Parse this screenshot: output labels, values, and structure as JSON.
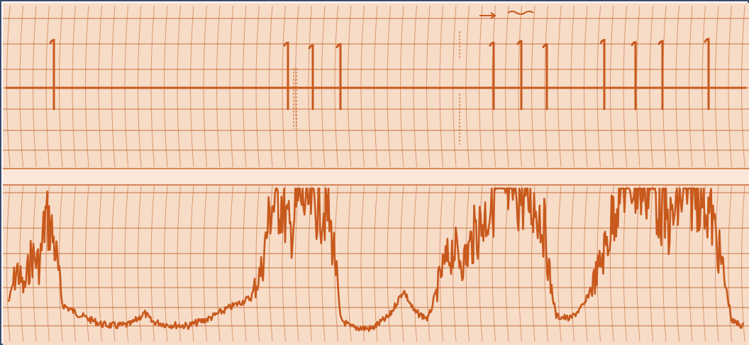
{
  "image": {
    "description": "",
    "paper_color": "#f7dcc8",
    "ink_color": "#c8591c",
    "grid_color": "#c76a32",
    "separator_color": "#fbe8da",
    "border_color": "#3b4a6b"
  },
  "chart_data": {
    "type": "line",
    "title": "",
    "xlabel": "",
    "ylabel": "",
    "grid": true,
    "top_trace": {
      "name": "",
      "markers_x": [
        72,
        402,
        437,
        476,
        692,
        731,
        767,
        848,
        892,
        930,
        995
      ],
      "markers_height": [
        0.9,
        0.85,
        0.8,
        0.82,
        0.85,
        0.88,
        0.82,
        0.9,
        0.86,
        0.88,
        0.92
      ]
    },
    "bottom_trace": {
      "name": "",
      "envelope": [
        [
          8,
          0.22
        ],
        [
          20,
          0.45
        ],
        [
          30,
          0.3
        ],
        [
          40,
          0.55
        ],
        [
          52,
          0.48
        ],
        [
          60,
          0.82
        ],
        [
          68,
          0.75
        ],
        [
          76,
          0.52
        ],
        [
          84,
          0.2
        ],
        [
          100,
          0.15
        ],
        [
          120,
          0.1
        ],
        [
          140,
          0.06
        ],
        [
          160,
          0.05
        ],
        [
          180,
          0.06
        ],
        [
          200,
          0.14
        ],
        [
          210,
          0.08
        ],
        [
          230,
          0.06
        ],
        [
          260,
          0.05
        ],
        [
          290,
          0.1
        ],
        [
          320,
          0.18
        ],
        [
          350,
          0.25
        ],
        [
          365,
          0.45
        ],
        [
          378,
          0.9
        ],
        [
          392,
          0.95
        ],
        [
          405,
          0.7
        ],
        [
          418,
          0.96
        ],
        [
          430,
          0.9
        ],
        [
          445,
          0.92
        ],
        [
          458,
          0.85
        ],
        [
          468,
          0.55
        ],
        [
          476,
          0.1
        ],
        [
          490,
          0.04
        ],
        [
          520,
          0.03
        ],
        [
          545,
          0.12
        ],
        [
          565,
          0.3
        ],
        [
          580,
          0.15
        ],
        [
          600,
          0.1
        ],
        [
          620,
          0.45
        ],
        [
          635,
          0.6
        ],
        [
          650,
          0.5
        ],
        [
          665,
          0.7
        ],
        [
          680,
          0.82
        ],
        [
          695,
          1.0
        ],
        [
          710,
          0.98
        ],
        [
          725,
          1.0
        ],
        [
          740,
          0.95
        ],
        [
          755,
          0.88
        ],
        [
          765,
          0.7
        ],
        [
          772,
          0.35
        ],
        [
          780,
          0.12
        ],
        [
          800,
          0.1
        ],
        [
          820,
          0.2
        ],
        [
          840,
          0.45
        ],
        [
          855,
          0.7
        ],
        [
          870,
          1.08
        ],
        [
          885,
          1.1
        ],
        [
          900,
          1.05
        ],
        [
          912,
          1.1
        ],
        [
          925,
          0.9
        ],
        [
          940,
          0.75
        ],
        [
          955,
          0.95
        ],
        [
          970,
          1.0
        ],
        [
          985,
          1.02
        ],
        [
          1000,
          0.8
        ],
        [
          1015,
          0.45
        ],
        [
          1028,
          0.08
        ],
        [
          1045,
          0.05
        ]
      ]
    }
  },
  "annotations": {
    "top_handwritten": "",
    "vertical_label_1": "",
    "vertical_label_2": ""
  }
}
